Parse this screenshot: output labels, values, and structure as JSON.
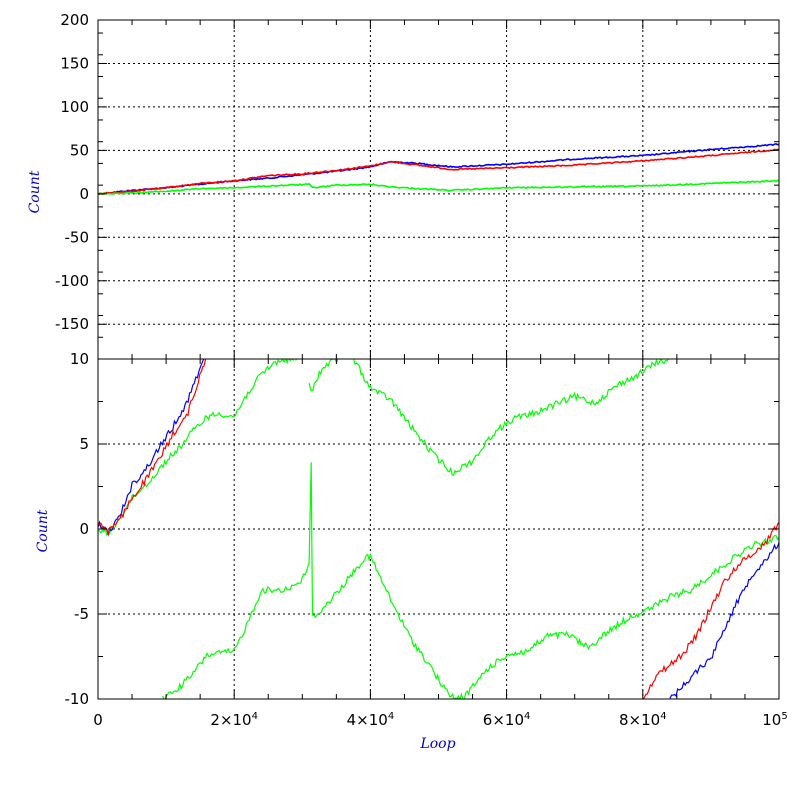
{
  "chart_data": [
    {
      "type": "line",
      "panel": "top",
      "xlabel": "",
      "ylabel": "Count",
      "xlim": [
        0,
        100000
      ],
      "ylim": [
        -190,
        200
      ],
      "yticks": [
        200,
        150,
        100,
        50,
        0,
        -50,
        -100,
        -150
      ],
      "ytick_labels": [
        "200",
        "150",
        "100",
        "50",
        "0",
        "-50",
        "-100",
        "-150"
      ],
      "grid": true,
      "series": [
        {
          "color": "#0000ff",
          "x": [
            0,
            5000,
            10000,
            15000,
            20000,
            25000,
            30000,
            35000,
            40000,
            43000,
            47000,
            52000,
            60000,
            70000,
            80000,
            90000,
            100000
          ],
          "y": [
            0,
            4,
            7,
            11,
            15,
            18,
            22,
            26,
            31,
            37,
            35,
            31,
            34,
            40,
            44,
            51,
            57
          ]
        },
        {
          "color": "#ff0000",
          "x": [
            0,
            5000,
            10000,
            15000,
            20000,
            25000,
            30000,
            35000,
            40000,
            43000,
            47000,
            52000,
            60000,
            70000,
            80000,
            90000,
            100000
          ],
          "y": [
            0,
            3,
            7,
            12,
            15,
            21,
            23,
            27,
            32,
            37,
            33,
            28,
            30,
            33,
            38,
            44,
            51
          ]
        },
        {
          "color": "#00ff00",
          "x": [
            0,
            5000,
            10000,
            15000,
            20000,
            25000,
            31000,
            31500,
            35000,
            40000,
            43000,
            47000,
            52000,
            60000,
            70000,
            80000,
            90000,
            100000
          ],
          "y": [
            0,
            1,
            3,
            6,
            7,
            9,
            11,
            7,
            10,
            11,
            8,
            6,
            4,
            7,
            8,
            9,
            12,
            15
          ]
        }
      ]
    },
    {
      "type": "line",
      "panel": "bottom",
      "xlabel": "Loop",
      "ylabel": "Count",
      "xlim": [
        0,
        100000
      ],
      "ylim": [
        -10,
        10
      ],
      "yticks": [
        10,
        5,
        0,
        -5,
        -10
      ],
      "ytick_labels": [
        "10",
        "5",
        "0",
        "-5",
        "-10"
      ],
      "xticks": [
        0,
        20000,
        40000,
        60000,
        80000,
        100000
      ],
      "xtick_labels": [
        {
          "base": "0",
          "exp": ""
        },
        {
          "base": "2×10",
          "exp": "4"
        },
        {
          "base": "4×10",
          "exp": "4"
        },
        {
          "base": "6×10",
          "exp": "4"
        },
        {
          "base": "8×10",
          "exp": "4"
        },
        {
          "base": "10",
          "exp": "5"
        }
      ],
      "grid": true,
      "series": [
        {
          "color": "#00ff00",
          "x": [
            0,
            1500,
            3000,
            5000,
            8000,
            10000,
            12000,
            14000,
            16000,
            18000,
            20000,
            22000,
            24000,
            26000,
            28000,
            29500
          ],
          "y": [
            0,
            -0.3,
            0.5,
            1.8,
            3.0,
            4.0,
            4.8,
            5.8,
            6.6,
            6.8,
            6.6,
            8.0,
            9.1,
            9.8,
            10,
            10
          ]
        },
        {
          "color": "#00ff00",
          "x": [
            31000,
            31300,
            32500,
            34000,
            35500
          ],
          "y": [
            8.5,
            8.0,
            9.2,
            9.8,
            10
          ]
        },
        {
          "color": "#00ff00",
          "x": [
            37500,
            40000,
            43000,
            46000,
            49000,
            52000,
            55000,
            58000,
            61000,
            64000,
            67000,
            70000,
            73000,
            76000,
            79000,
            82000,
            84000
          ],
          "y": [
            10,
            8.3,
            7.6,
            6.0,
            4.5,
            3.3,
            4.0,
            5.6,
            6.5,
            6.8,
            7.3,
            7.8,
            7.4,
            8.4,
            9.0,
            9.8,
            10
          ]
        },
        {
          "color": "#00ff00",
          "x": [
            9500,
            12000,
            14000,
            16000,
            18000,
            20000,
            22000,
            24000,
            26000,
            28000,
            30000,
            31000,
            31300,
            31500,
            33000,
            36000,
            39000,
            40000,
            43000,
            46000,
            49000,
            51000,
            52500,
            54000,
            57000,
            60000,
            63000,
            66000,
            69000,
            72000,
            75000,
            78000,
            81000,
            84000,
            87000,
            90000,
            93000,
            96000,
            100000
          ],
          "y": [
            -10,
            -9.3,
            -8.5,
            -7.4,
            -7.3,
            -7.2,
            -5.5,
            -3.6,
            -3.6,
            -3.5,
            -3.0,
            -2.0,
            3.8,
            -5.2,
            -4.7,
            -3.3,
            -1.8,
            -1.6,
            -4.2,
            -6.5,
            -8.2,
            -9.5,
            -10,
            -9.8,
            -8.3,
            -7.4,
            -7.2,
            -6.3,
            -6.2,
            -7.0,
            -6.0,
            -5.2,
            -4.7,
            -4.0,
            -3.6,
            -2.7,
            -1.8,
            -1.0,
            -0.5
          ]
        },
        {
          "color": "#0000ff",
          "x": [
            0,
            1500,
            3000,
            5000,
            7000,
            9000,
            11000,
            13000,
            15500
          ],
          "y": [
            0.3,
            -0.2,
            0.6,
            2.6,
            3.5,
            4.8,
            6.0,
            7.4,
            10
          ]
        },
        {
          "color": "#ff0000",
          "x": [
            0,
            1500,
            3000,
            5000,
            7000,
            9000,
            11000,
            13000,
            15800
          ],
          "y": [
            0.4,
            -0.1,
            0.4,
            1.8,
            2.9,
            4.1,
            5.6,
            6.6,
            10
          ]
        },
        {
          "color": "#ff0000",
          "x": [
            80000,
            82000,
            84000,
            86000,
            88000,
            90000,
            92000,
            94000,
            96000,
            98000,
            100000
          ],
          "y": [
            -10,
            -8.6,
            -8.0,
            -7.3,
            -6.2,
            -4.6,
            -3.1,
            -2.1,
            -1.5,
            -0.8,
            0.4
          ]
        },
        {
          "color": "#0000ff",
          "x": [
            84000,
            86000,
            88000,
            90000,
            92000,
            94000,
            96000,
            98000,
            100000
          ],
          "y": [
            -10,
            -9.2,
            -8.3,
            -7.6,
            -5.8,
            -4.2,
            -2.7,
            -1.8,
            -0.8
          ]
        }
      ]
    }
  ]
}
